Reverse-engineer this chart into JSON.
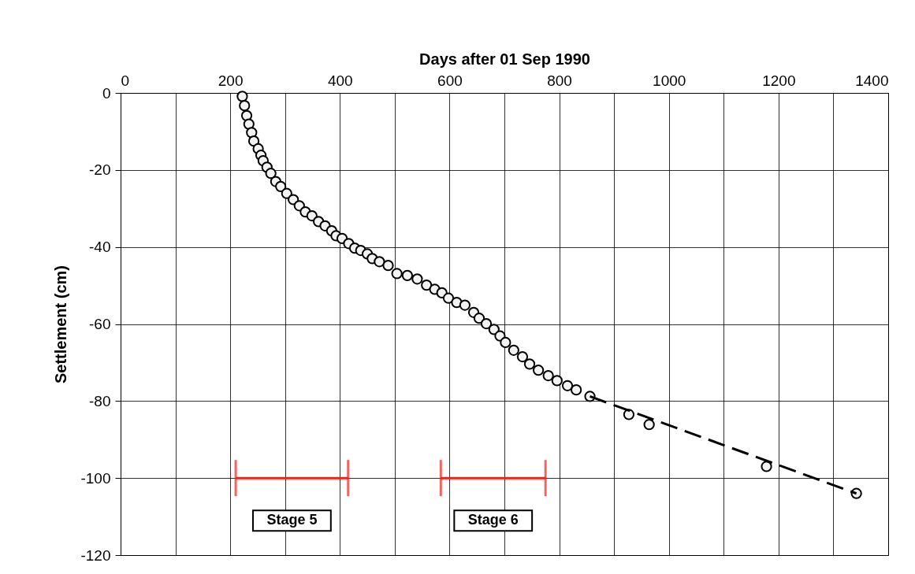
{
  "chart_data": {
    "type": "scatter",
    "xlabel": "Days after 01 Sep 1990",
    "ylabel": "Settlement (cm)",
    "xlim": [
      0,
      1400
    ],
    "xticks": [
      0,
      {
        "value": 100,
        "label": null
      },
      200,
      {
        "value": 300,
        "label": null
      },
      400,
      {
        "value": 500,
        "label": null
      },
      600,
      {
        "value": 700,
        "label": null
      },
      800,
      {
        "value": 900,
        "label": null
      },
      1000,
      {
        "value": 1100,
        "label": null
      },
      1200,
      {
        "value": 1300,
        "label": null
      },
      1400
    ],
    "ylim": [
      -120,
      0
    ],
    "yticks": [
      -120,
      -100,
      -80,
      -60,
      -40,
      -20,
      0
    ],
    "grid": true,
    "series": [
      {
        "type": "scatter",
        "marker": "circle",
        "color": "#000000",
        "x": [
          222,
          226,
          230,
          234,
          239,
          243,
          251,
          256,
          260,
          267,
          274,
          283,
          292,
          303,
          315,
          326,
          337,
          349,
          361,
          373,
          385,
          393,
          404,
          416,
          427,
          438,
          450,
          459,
          472,
          488,
          504,
          523,
          541,
          558,
          573,
          586,
          598,
          613,
          628,
          644,
          654,
          667,
          681,
          692,
          702,
          717,
          733,
          746,
          762,
          780,
          796,
          815,
          831,
          856,
          927,
          964,
          1178,
          1342
        ],
        "values": [
          -0.9,
          -3.3,
          -5.9,
          -8.1,
          -10.3,
          -12.5,
          -14.5,
          -16.2,
          -17.6,
          -19.3,
          -20.9,
          -23.0,
          -24.3,
          -26.1,
          -27.7,
          -29.3,
          -30.9,
          -31.9,
          -33.4,
          -34.5,
          -35.8,
          -37.1,
          -37.8,
          -39.1,
          -40.3,
          -40.9,
          -41.8,
          -43.0,
          -43.8,
          -44.8,
          -46.9,
          -47.4,
          -48.3,
          -49.9,
          -51.0,
          -51.9,
          -53.3,
          -54.4,
          -55.1,
          -57.0,
          -58.5,
          -59.9,
          -61.4,
          -63.1,
          -64.8,
          -66.8,
          -68.5,
          -70.4,
          -72.0,
          -73.4,
          -74.7,
          -76.0,
          -77.1,
          -78.8,
          -83.5,
          -86.1,
          -97.0,
          -104.0
        ]
      },
      {
        "type": "line",
        "line_style": "dashed",
        "marker": "none",
        "color": "#000000",
        "x": [
          856,
          1342
        ],
        "values": [
          -78.8,
          -104.0
        ]
      },
      {
        "type": "line",
        "marker": "none",
        "line_style": "solid",
        "color": "#e8241b",
        "x": [
          210,
          415
        ],
        "values": [
          -100,
          -100
        ]
      },
      {
        "type": "line",
        "marker": "none",
        "line_style": "solid",
        "color": "#e8241b",
        "x": [
          584,
          775
        ],
        "values": [
          -100,
          -100
        ]
      }
    ],
    "annotations": [
      {
        "text": "Stage 5",
        "x": 312.5,
        "y": -100
      },
      {
        "text": "Stage 6",
        "x": 679.5,
        "y": -100
      }
    ]
  }
}
